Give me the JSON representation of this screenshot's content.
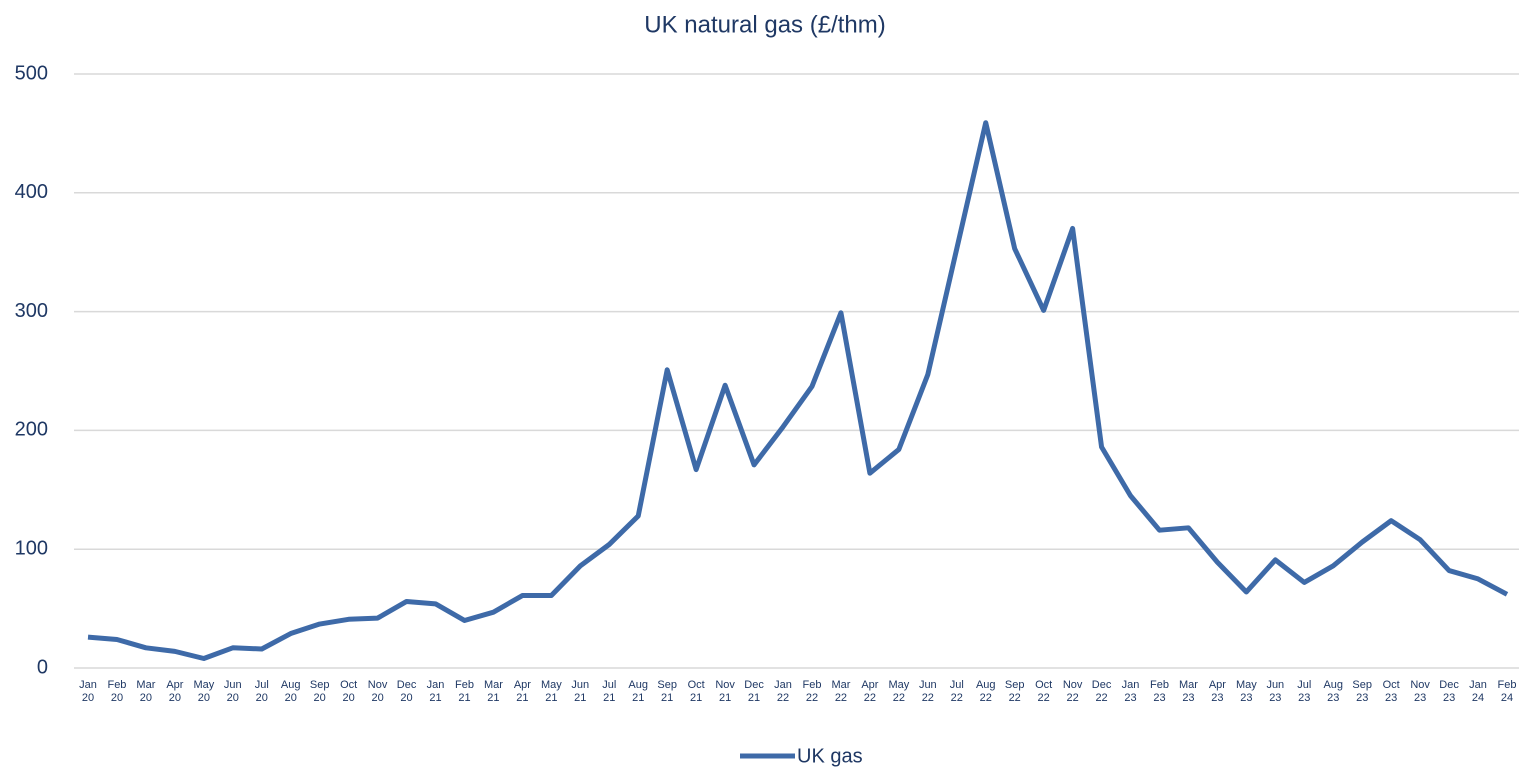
{
  "chart_data": {
    "type": "line",
    "title": "UK natural gas (£/thm)",
    "categories": [
      "Jan 20",
      "Feb 20",
      "Mar 20",
      "Apr 20",
      "May 20",
      "Jun 20",
      "Jul 20",
      "Aug 20",
      "Sep 20",
      "Oct 20",
      "Nov 20",
      "Dec 20",
      "Jan 21",
      "Feb 21",
      "Mar 21",
      "Apr 21",
      "May 21",
      "Jun 21",
      "Jul 21",
      "Aug 21",
      "Sep 21",
      "Oct 21",
      "Nov 21",
      "Dec 21",
      "Jan 22",
      "Feb 22",
      "Mar 22",
      "Apr 22",
      "May 22",
      "Jun 22",
      "Jul 22",
      "Aug 22",
      "Sep 22",
      "Oct 22",
      "Nov 22",
      "Dec 22",
      "Jan 23",
      "Feb 23",
      "Mar 23",
      "Apr 23",
      "May 23",
      "Jun 23",
      "Jul 23",
      "Aug 23",
      "Sep 23",
      "Oct 23",
      "Nov 23",
      "Dec 23",
      "Jan 24",
      "Feb 24"
    ],
    "series": [
      {
        "name": "UK gas",
        "color": "#3e6aa8",
        "values": [
          26,
          24,
          17,
          14,
          8,
          17,
          16,
          29,
          37,
          41,
          42,
          56,
          54,
          40,
          47,
          61,
          61,
          86,
          104,
          128,
          251,
          167,
          238,
          171,
          203,
          237,
          299,
          164,
          184,
          247,
          353,
          459,
          353,
          301,
          370,
          186,
          145,
          116,
          118,
          89,
          64,
          91,
          72,
          86,
          106,
          124,
          108,
          82,
          75,
          62
        ]
      }
    ],
    "ylim": [
      0,
      500
    ],
    "yticks": [
      0,
      100,
      200,
      300,
      400,
      500
    ],
    "grid": true,
    "legend": "bottom"
  }
}
